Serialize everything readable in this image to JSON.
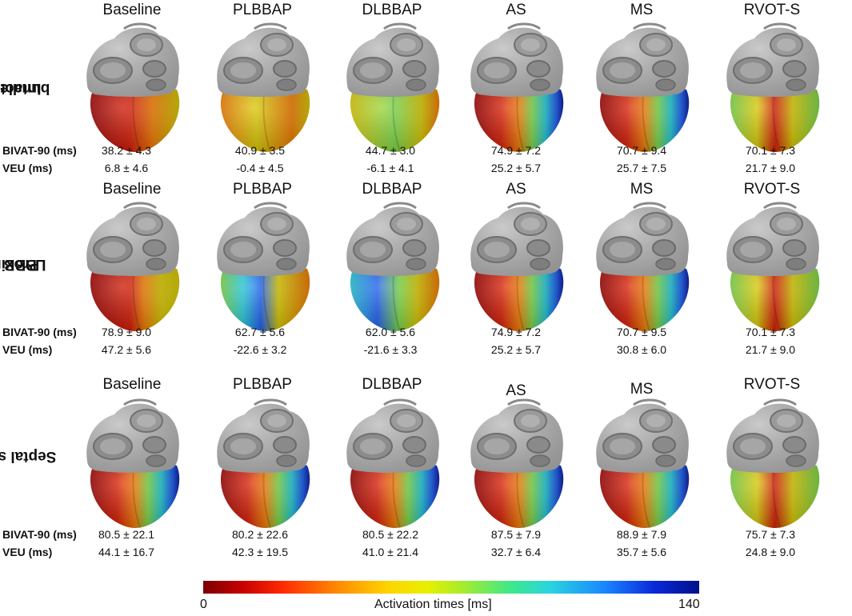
{
  "columns": [
    "Baseline",
    "PLBBAP",
    "DLBBAP",
    "AS",
    "MS",
    "RVOT-S"
  ],
  "metric_labels": {
    "bivat": "BIVAT-90 (ms)",
    "veu": "VEU (ms)"
  },
  "colors": {
    "dark_red": "#9a0000",
    "red": "#d41800",
    "orange": "#f07a00",
    "yellow": "#d8c800",
    "green": "#7ad848",
    "cyan": "#20c8d8",
    "blue": "#1a5cf0",
    "dark_blue": "#0818a0",
    "gray": "#b4b4b4"
  },
  "rows": [
    {
      "label_line1": "Intact left",
      "label_line2": "bundle",
      "patterns": [
        "red",
        "yellow",
        "yellowgreen",
        "gradient",
        "gradient",
        "focal"
      ],
      "bivat": [
        "38.2 ± 4.3",
        "40.9 ± 3.5",
        "44.7 ± 3.0",
        "74.9 ± 7.2",
        "70.7 ± 9.4",
        "70.1 ± 7.3"
      ],
      "veu": [
        "6.8 ± 4.6",
        "-0.4 ± 4.5",
        "-6.1 ± 4.1",
        "25.2 ± 5.7",
        "25.7 ± 7.5",
        "21.7 ± 9.0"
      ]
    },
    {
      "label_line1": "Proximal",
      "label_line2": "LBBB",
      "patterns": [
        "lbbb",
        "early",
        "early2",
        "gradient",
        "gradient",
        "focal"
      ],
      "bivat": [
        "78.9 ± 9.0",
        "62.7 ± 5.6",
        "62.0 ± 5.6",
        "74.9 ± 7.2",
        "70.7 ± 9.5",
        "70.1 ± 7.3"
      ],
      "veu": [
        "47.2 ± 5.6",
        "-22.6 ± 3.2",
        "-21.6 ± 3.3",
        "25.2 ± 5.7",
        "30.8 ± 6.0",
        "21.7 ± 9.0"
      ]
    },
    {
      "label_line1": "Septal scar",
      "label_line2": "",
      "patterns": [
        "gradient",
        "gradient",
        "gradient",
        "gradient",
        "gradient",
        "focal"
      ],
      "bivat": [
        "80.5 ± 22.1",
        "80.2 ± 22.6",
        "80.5 ± 22.2",
        "87.5 ± 7.9",
        "88.9 ± 7.9",
        "75.7 ± 7.3"
      ],
      "veu": [
        "44.1 ± 16.7",
        "42.3 ± 19.5",
        "41.0 ± 21.4",
        "32.7 ± 6.4",
        "35.7 ± 5.6",
        "24.8 ± 9.0"
      ]
    }
  ],
  "colorbar": {
    "min": "0",
    "max": "140",
    "label": "Activation times [ms]"
  }
}
